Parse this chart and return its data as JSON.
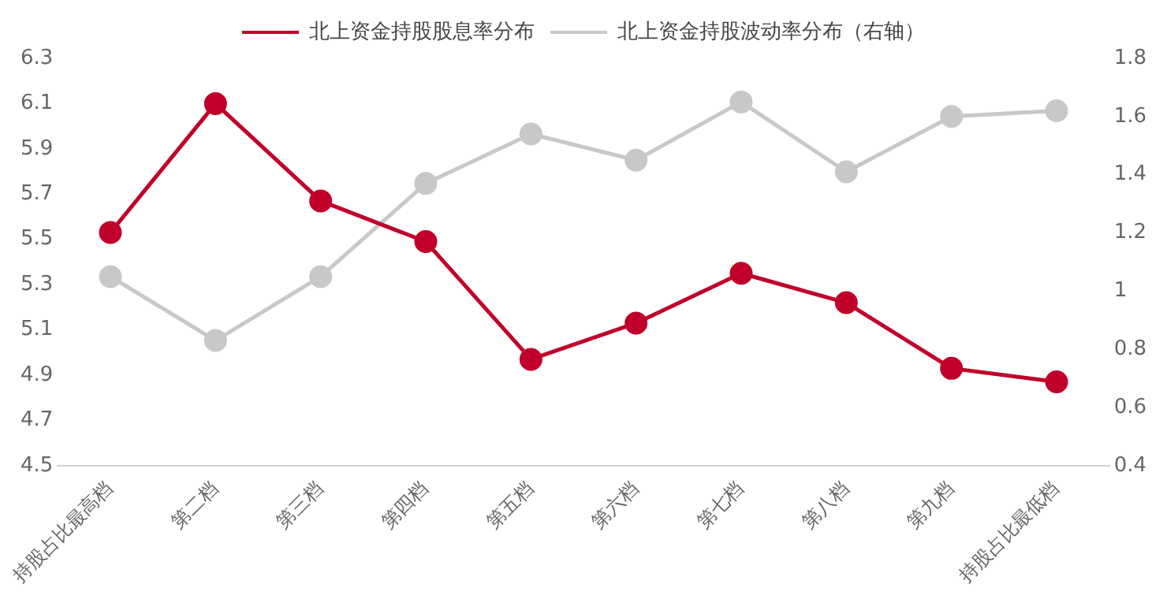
{
  "chart_data": {
    "type": "line",
    "categories": [
      "持股占比最高档",
      "第二档",
      "第三档",
      "第四档",
      "第五档",
      "第六档",
      "第七档",
      "第八档",
      "第九档",
      "持股占比最低档"
    ],
    "series": [
      {
        "name": "北上资金持股股息率分布",
        "color": "#c0002a",
        "values": [
          5.53,
          6.1,
          5.67,
          5.49,
          4.97,
          5.13,
          5.35,
          5.22,
          4.93,
          4.87
        ]
      },
      {
        "name": "北上资金持股波动率分布（右轴）",
        "color": "#c8c8c8",
        "axis": "y2",
        "values": [
          1.05,
          0.83,
          1.05,
          1.37,
          1.54,
          1.45,
          1.65,
          1.41,
          1.6,
          1.62
        ]
      }
    ],
    "ylim": [
      4.5,
      6.3
    ],
    "yticks": [
      4.5,
      4.7,
      4.9,
      5.1,
      5.3,
      5.5,
      5.7,
      5.9,
      6.1,
      6.3
    ],
    "y2lim": [
      0.4,
      1.8
    ],
    "y2ticks": [
      0.4,
      0.6,
      0.8,
      1,
      1.2,
      1.4,
      1.6,
      1.8
    ],
    "grid": false,
    "legend": "top",
    "marker": "circle",
    "line_style": "solid"
  }
}
